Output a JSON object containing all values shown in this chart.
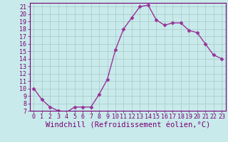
{
  "x": [
    0,
    1,
    2,
    3,
    4,
    5,
    6,
    7,
    8,
    9,
    10,
    11,
    12,
    13,
    14,
    15,
    16,
    17,
    18,
    19,
    20,
    21,
    22,
    23
  ],
  "y": [
    10,
    8.5,
    7.5,
    7,
    6.8,
    7.5,
    7.5,
    7.5,
    9.2,
    11.2,
    15.2,
    18,
    19.5,
    21,
    21.2,
    19.2,
    18.5,
    18.8,
    18.8,
    17.8,
    17.5,
    16,
    14.5,
    14
  ],
  "line_color": "#993399",
  "marker": "D",
  "marker_size": 2.5,
  "bg_color": "#c8eaea",
  "grid_color": "#a8c8c8",
  "xlabel": "Windchill (Refroidissement éolien,°C)",
  "xlim": [
    -0.5,
    23.5
  ],
  "ylim": [
    7,
    21.5
  ],
  "yticks": [
    7,
    8,
    9,
    10,
    11,
    12,
    13,
    14,
    15,
    16,
    17,
    18,
    19,
    20,
    21
  ],
  "xticks": [
    0,
    1,
    2,
    3,
    4,
    5,
    6,
    7,
    8,
    9,
    10,
    11,
    12,
    13,
    14,
    15,
    16,
    17,
    18,
    19,
    20,
    21,
    22,
    23
  ],
  "tick_color": "#770077",
  "xlabel_fontsize": 7.5,
  "tick_fontsize": 6,
  "linewidth": 1.0
}
